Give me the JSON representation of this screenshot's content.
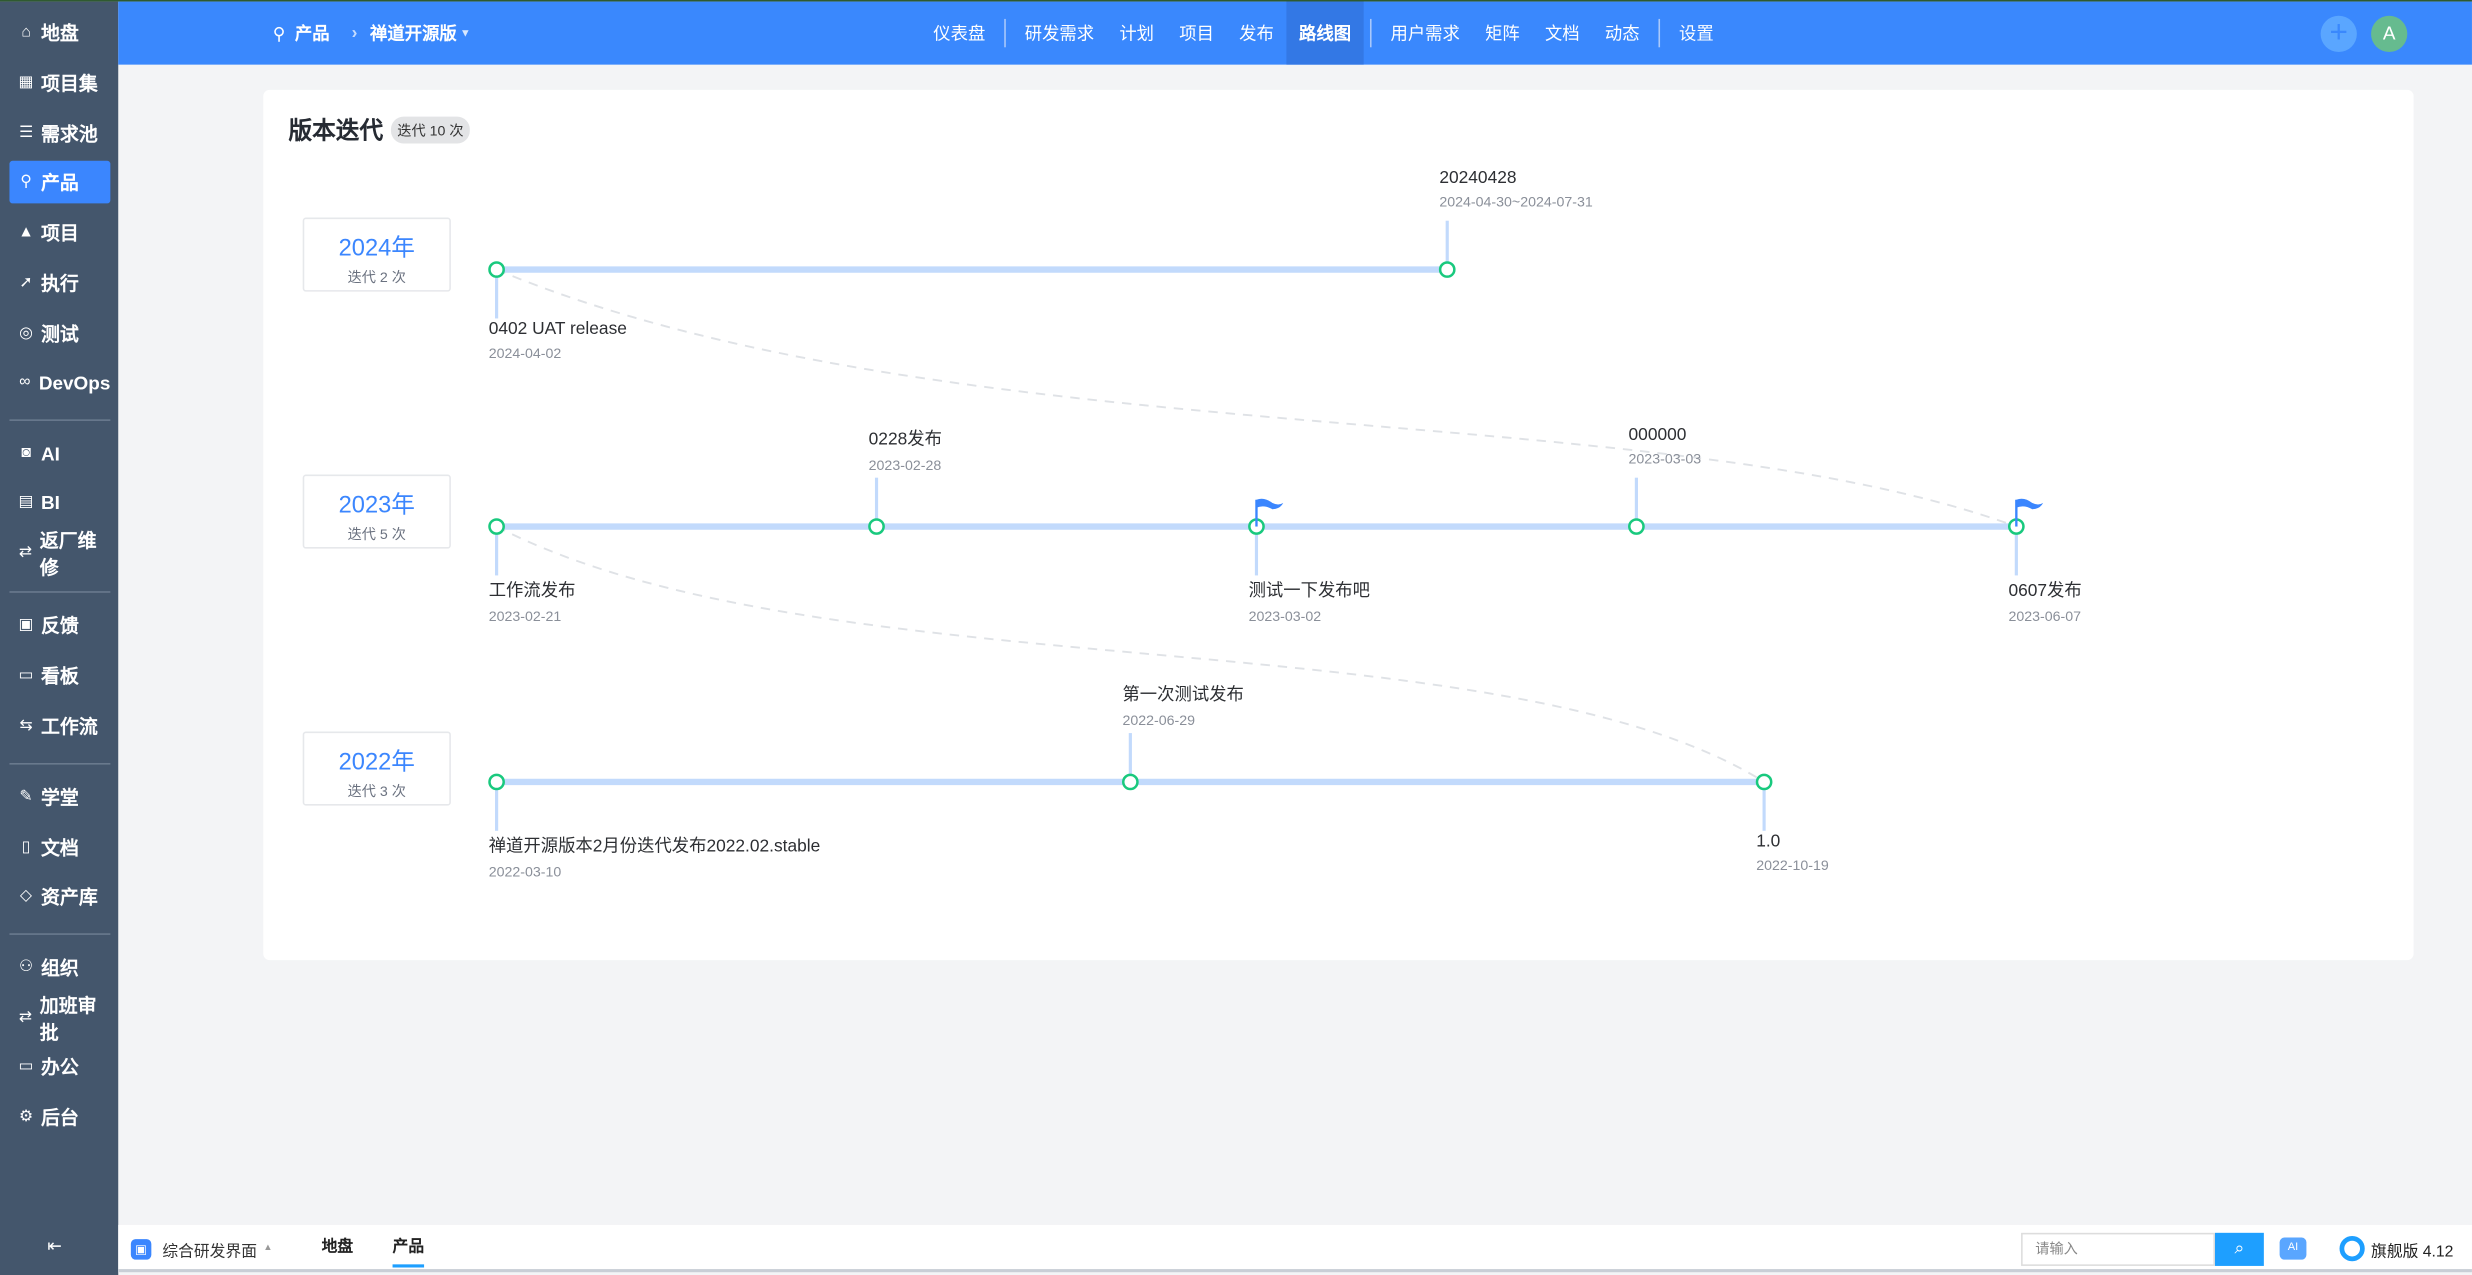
{
  "sidebar": {
    "items": [
      {
        "label": "地盘",
        "icon": "home-icon"
      },
      {
        "label": "项目集",
        "icon": "grid-icon"
      },
      {
        "label": "需求池",
        "icon": "list-icon"
      },
      {
        "label": "产品",
        "icon": "lightbulb-icon",
        "active": true
      },
      {
        "label": "项目",
        "icon": "rocket-icon"
      },
      {
        "label": "执行",
        "icon": "run-icon"
      },
      {
        "label": "测试",
        "icon": "search-bug-icon"
      },
      {
        "label": "DevOps",
        "icon": "infinity-icon"
      },
      {
        "label": "AI",
        "icon": "robot-icon"
      },
      {
        "label": "BI",
        "icon": "chart-icon"
      },
      {
        "label": "返厂维修",
        "icon": "swap-icon"
      },
      {
        "label": "反馈",
        "icon": "inbox-icon"
      },
      {
        "label": "看板",
        "icon": "kanban-icon"
      },
      {
        "label": "工作流",
        "icon": "flow-icon"
      },
      {
        "label": "学堂",
        "icon": "school-icon"
      },
      {
        "label": "文档",
        "icon": "doc-icon"
      },
      {
        "label": "资产库",
        "icon": "diamond-icon"
      },
      {
        "label": "组织",
        "icon": "users-icon"
      },
      {
        "label": "加班审批",
        "icon": "approve-icon"
      },
      {
        "label": "办公",
        "icon": "desktop-icon"
      },
      {
        "label": "后台",
        "icon": "settings-icon"
      }
    ],
    "collapse_icon": "collapse-left-icon"
  },
  "topbar": {
    "breadcrumb": {
      "section": "产品",
      "product": "禅道开源版"
    },
    "nav": [
      "仪表盘",
      "研发需求",
      "计划",
      "项目",
      "发布",
      "路线图",
      "用户需求",
      "矩阵",
      "文档",
      "动态",
      "设置"
    ],
    "active_nav": "路线图",
    "avatar": "A",
    "colors": {
      "bar": "#3a88fd",
      "active": "#3378e5"
    }
  },
  "roadmap": {
    "title": "版本迭代",
    "badge": "迭代 10 次",
    "years": [
      {
        "year": "2024年",
        "count": "迭代 2 次",
        "items": [
          {
            "name": "0402 UAT release",
            "date": "2024-04-02",
            "flag": false
          },
          {
            "name": "20240428",
            "date": "2024-04-30~2024-07-31",
            "flag": false
          }
        ]
      },
      {
        "year": "2023年",
        "count": "迭代 5 次",
        "items": [
          {
            "name": "工作流发布",
            "date": "2023-02-21",
            "flag": false
          },
          {
            "name": "0228发布",
            "date": "2023-02-28",
            "flag": false
          },
          {
            "name": "测试一下发布吧",
            "date": "2023-03-02",
            "flag": true
          },
          {
            "name": "000000",
            "date": "2023-03-03",
            "flag": false
          },
          {
            "name": "0607发布",
            "date": "2023-06-07",
            "flag": true
          }
        ]
      },
      {
        "year": "2022年",
        "count": "迭代 3 次",
        "items": [
          {
            "name": "禅道开源版本2月份迭代发布2022.02.stable",
            "date": "2022-03-10",
            "flag": false
          },
          {
            "name": "第一次测试发布",
            "date": "2022-06-29",
            "flag": false
          },
          {
            "name": "1.0",
            "date": "2022-10-19",
            "flag": false
          }
        ]
      }
    ],
    "colors": {
      "line": "#c2dafc",
      "node": "#19c97e",
      "flag": "#3b86fe",
      "year": "#3b86fe"
    }
  },
  "bottombar": {
    "workspace": "综合研发界面",
    "tabs": [
      "地盘",
      "产品"
    ],
    "active_tab": "产品",
    "search_placeholder": "请输入",
    "ai_label": "AI",
    "edition": "旗舰版 4.12"
  }
}
